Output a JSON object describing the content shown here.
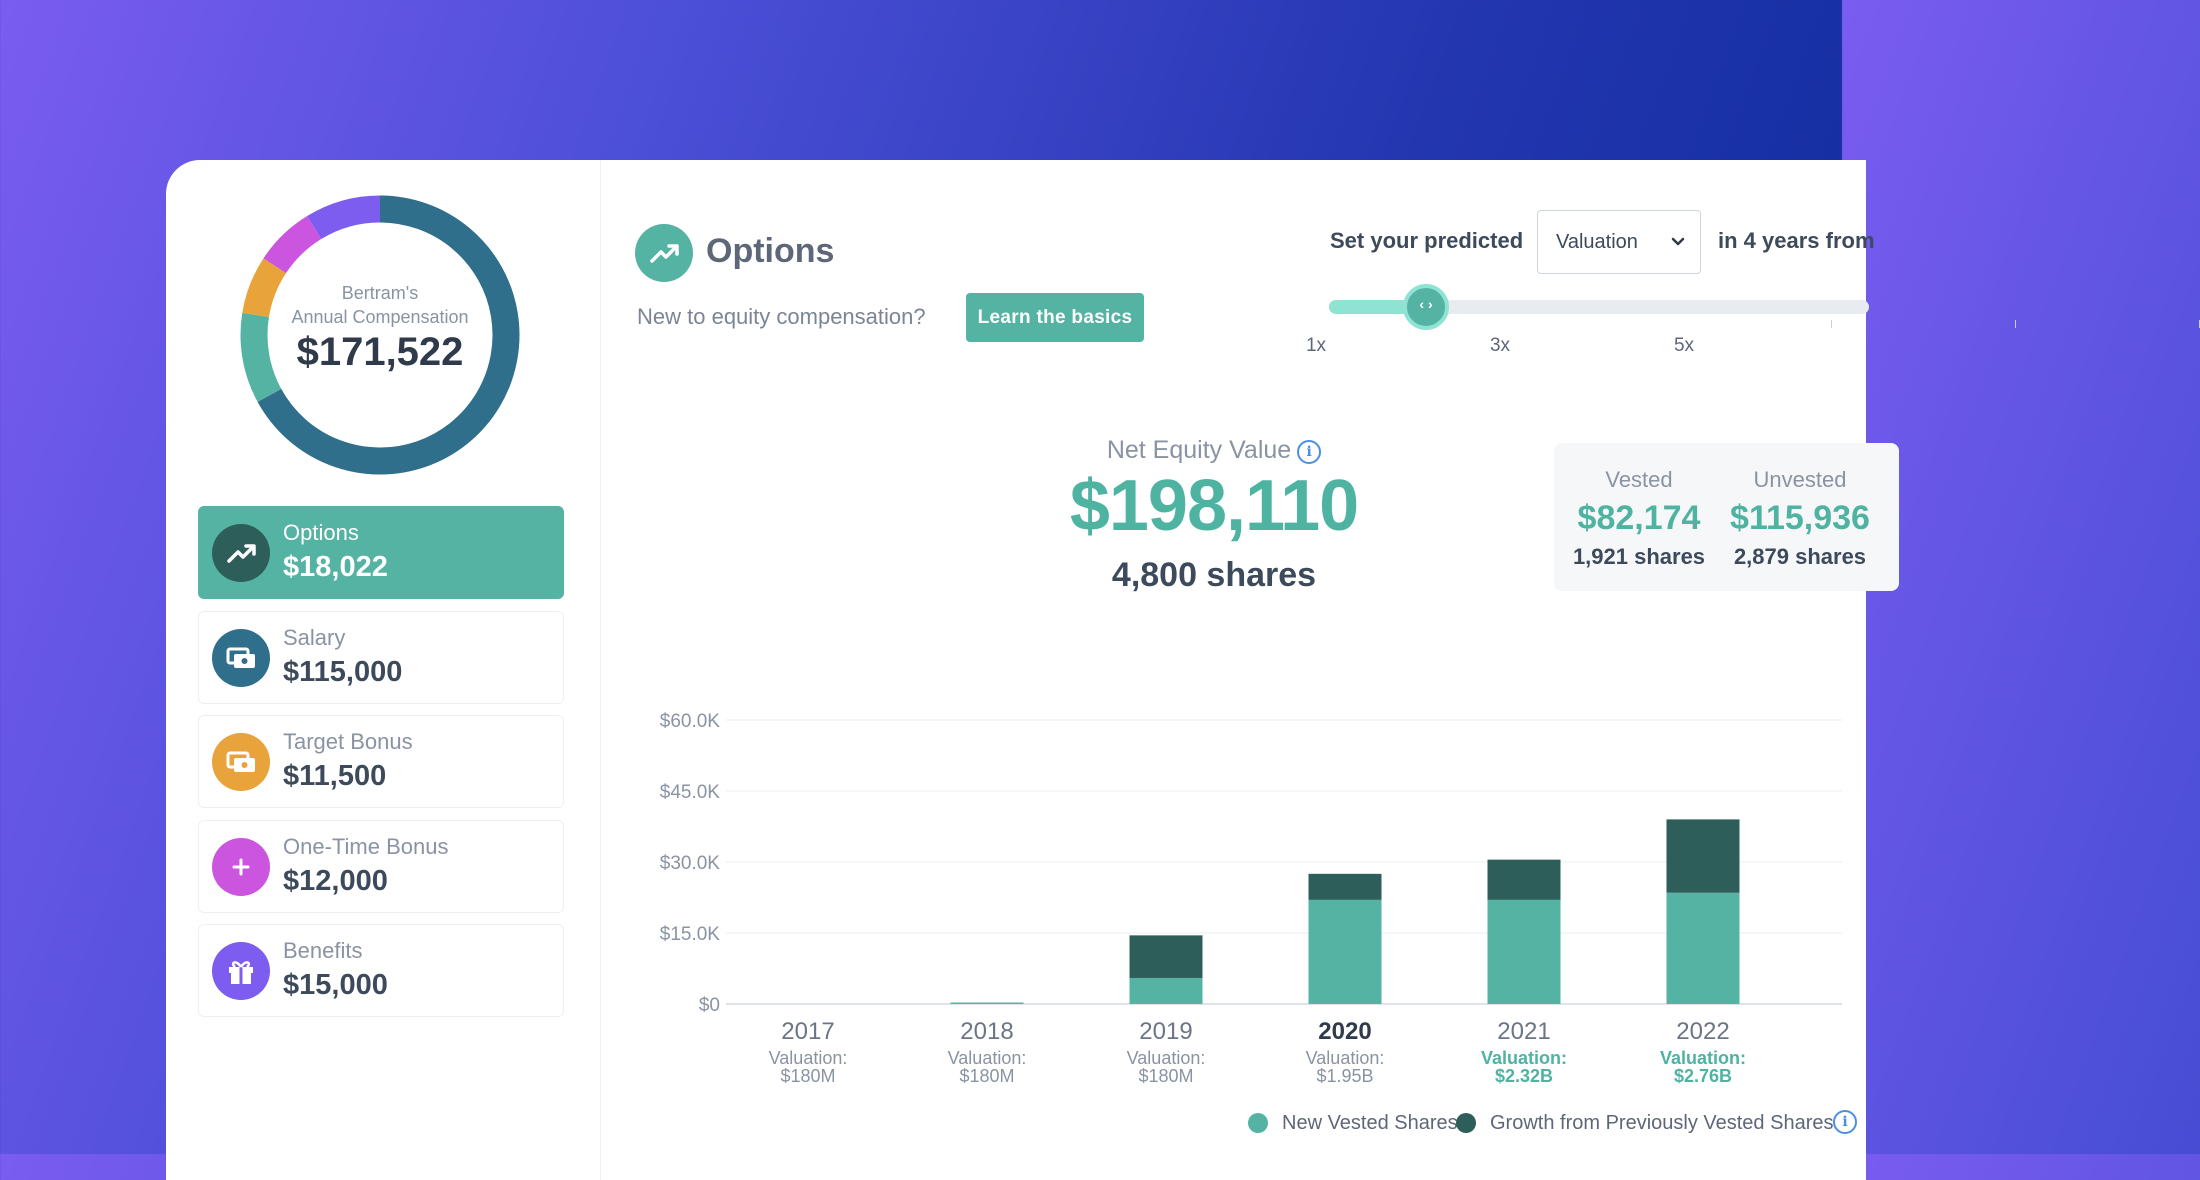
{
  "colors": {
    "accent": "#55b3a3",
    "dark_teal": "#2e5e59",
    "donut_navy": "#2f6f8c",
    "orange": "#e8a33a",
    "magenta": "#cc55e0",
    "purple": "#7d5cf0",
    "highlight_text": "#4fb3a2"
  },
  "donut": {
    "line1": "Bertram's",
    "line2": "Annual Compensation",
    "total": "$171,522",
    "segments": [
      {
        "name": "Salary",
        "value": 115000,
        "color": "#2f6f8c"
      },
      {
        "name": "Options",
        "value": 18022,
        "color": "#55b3a3"
      },
      {
        "name": "Target Bonus",
        "value": 11500,
        "color": "#e8a33a"
      },
      {
        "name": "One-Time Bonus",
        "value": 12000,
        "color": "#cc55e0"
      },
      {
        "name": "Benefits",
        "value": 15000,
        "color": "#7d5cf0"
      }
    ]
  },
  "sidebar": {
    "items": [
      {
        "label": "Options",
        "value": "$18,022",
        "icon": "trending-up-icon",
        "active": true
      },
      {
        "label": "Salary",
        "value": "$115,000",
        "icon": "cash-icon",
        "active": false
      },
      {
        "label": "Target Bonus",
        "value": "$11,500",
        "icon": "cash-icon",
        "active": false
      },
      {
        "label": "One-Time Bonus",
        "value": "$12,000",
        "icon": "plus-icon",
        "active": false
      },
      {
        "label": "Benefits",
        "value": "$15,000",
        "icon": "gift-icon",
        "active": false
      }
    ]
  },
  "header": {
    "title": "Options",
    "question": "New to equity compensation?",
    "learn_button": "Learn the basics",
    "predict_label": "Set your predicted",
    "select_value": "Valuation",
    "predict_after": "in 4 years from"
  },
  "slider": {
    "multiplier": "1.5x",
    "ticks": [
      "1x",
      "3x",
      "5x"
    ]
  },
  "summary": {
    "label": "Net Equity Value",
    "value": "$198,110",
    "shares": "4,800 shares",
    "vested_label": "Vested",
    "vested_value": "$82,174",
    "vested_shares": "1,921 shares",
    "unvested_label": "Unvested",
    "unvested_value": "$115,936",
    "unvested_shares": "2,879 shares"
  },
  "chart_data": {
    "type": "bar",
    "stacked": true,
    "categories": [
      "2017",
      "2018",
      "2019",
      "2020",
      "2021",
      "2022"
    ],
    "highlight_category": "2020",
    "sublabels": [
      {
        "line1": "Valuation:",
        "line2": "$180M",
        "predicted": false
      },
      {
        "line1": "Valuation:",
        "line2": "$180M",
        "predicted": false
      },
      {
        "line1": "Valuation:",
        "line2": "$180M",
        "predicted": false
      },
      {
        "line1": "Valuation:",
        "line2": "$1.95B",
        "predicted": false
      },
      {
        "line1": "Valuation:",
        "line2": "$2.32B",
        "predicted": true
      },
      {
        "line1": "Valuation:",
        "line2": "$2.76B",
        "predicted": true
      }
    ],
    "series": [
      {
        "name": "New Vested Shares",
        "color": "#55b3a3",
        "values": [
          0,
          0.3,
          5500,
          22000,
          22000,
          23500
        ]
      },
      {
        "name": "Growth from Previously Vested Shares",
        "color": "#2e5e59",
        "values": [
          0,
          0,
          9000,
          5500,
          8500,
          15500
        ]
      }
    ],
    "yticks": [
      "$0",
      "$15.0K",
      "$30.0K",
      "$45.0K",
      "$60.0K"
    ],
    "ylim": [
      0,
      60000
    ],
    "grid": true,
    "legend": "bottom"
  }
}
